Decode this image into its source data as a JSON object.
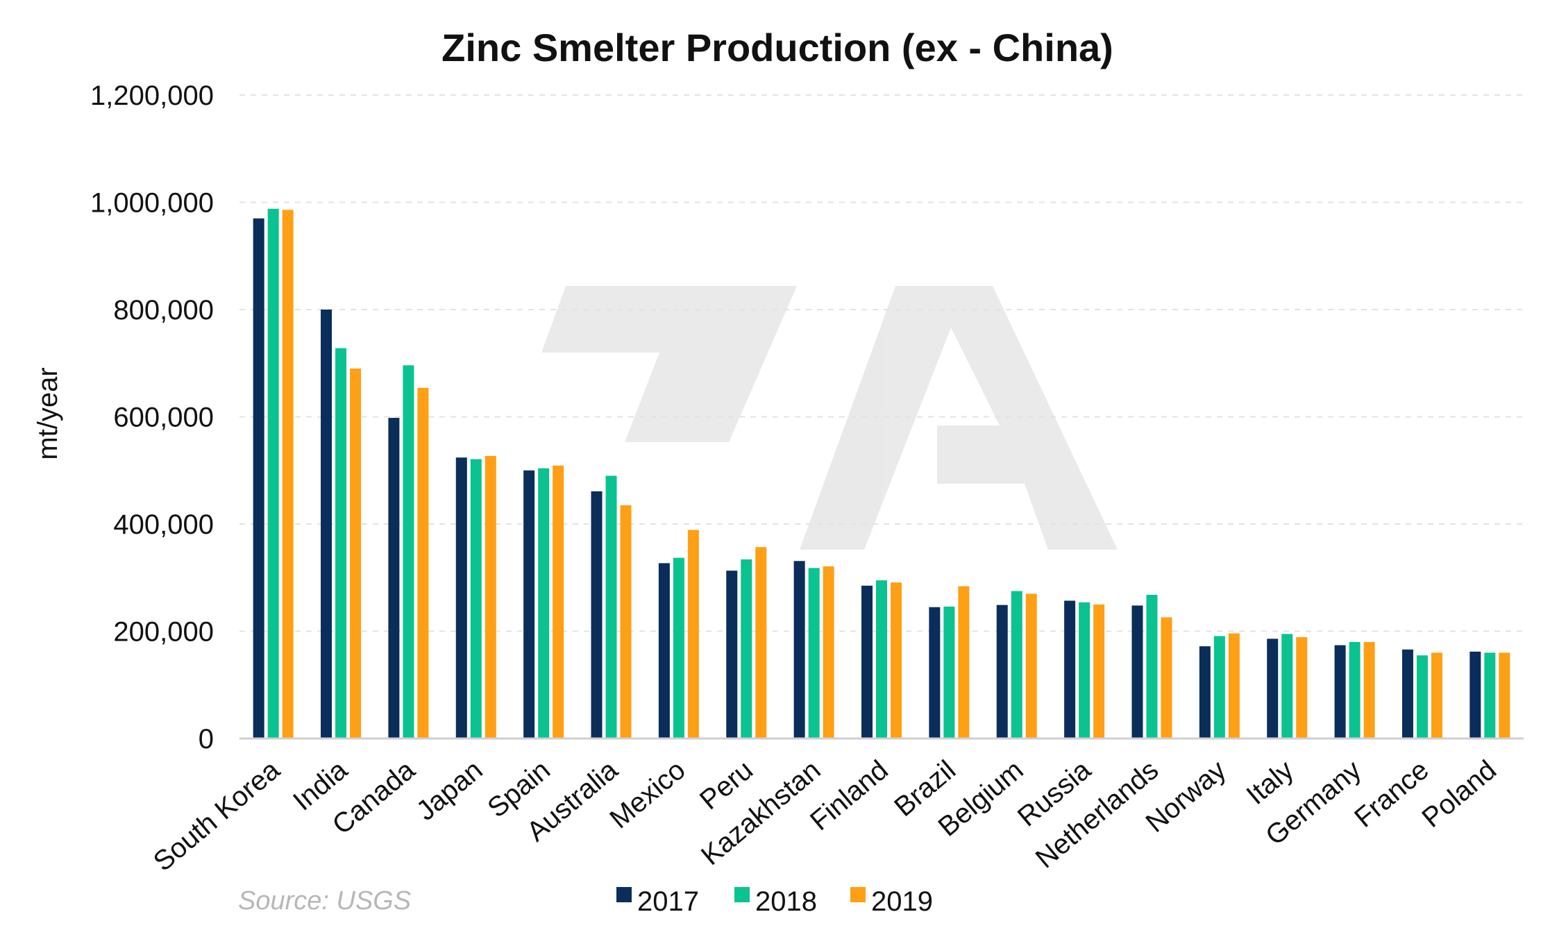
{
  "chart_data": {
    "type": "bar",
    "title": "Zinc Smelter Production (ex - China)",
    "xlabel": "",
    "ylabel": "mt/year",
    "ylim": [
      0,
      1200000
    ],
    "yticks": [
      "0",
      "200,000",
      "400,000",
      "600,000",
      "800,000",
      "1,000,000",
      "1,200,000"
    ],
    "ytick_values": [
      0,
      200000,
      400000,
      600000,
      800000,
      1000000,
      1200000
    ],
    "grid": true,
    "legend_position": "bottom",
    "categories": [
      "South Korea",
      "India",
      "Canada",
      "Japan",
      "Spain",
      "Australia",
      "Mexico",
      "Peru",
      "Kazakhstan",
      "Finland",
      "Brazil",
      "Belgium",
      "Russia",
      "Netherlands",
      "Norway",
      "Italy",
      "Germany",
      "France",
      "Poland"
    ],
    "series": [
      {
        "name": "2017",
        "color": "#0b2d5a",
        "values": [
          970000,
          800000,
          598000,
          524000,
          500000,
          461000,
          327000,
          313000,
          331000,
          285000,
          245000,
          249000,
          257000,
          248000,
          172000,
          186000,
          174000,
          166000,
          162000
        ]
      },
      {
        "name": "2018",
        "color": "#0ac390",
        "values": [
          988000,
          728000,
          696000,
          521000,
          504000,
          490000,
          337000,
          334000,
          318000,
          295000,
          246000,
          275000,
          254000,
          268000,
          191000,
          195000,
          180000,
          155000,
          160000
        ]
      },
      {
        "name": "2019",
        "color": "#ff9f15",
        "values": [
          986000,
          690000,
          654000,
          527000,
          509000,
          435000,
          389000,
          357000,
          321000,
          291000,
          284000,
          270000,
          250000,
          226000,
          196000,
          189000,
          180000,
          160000,
          160000
        ]
      }
    ]
  },
  "source": "Source: USGS"
}
